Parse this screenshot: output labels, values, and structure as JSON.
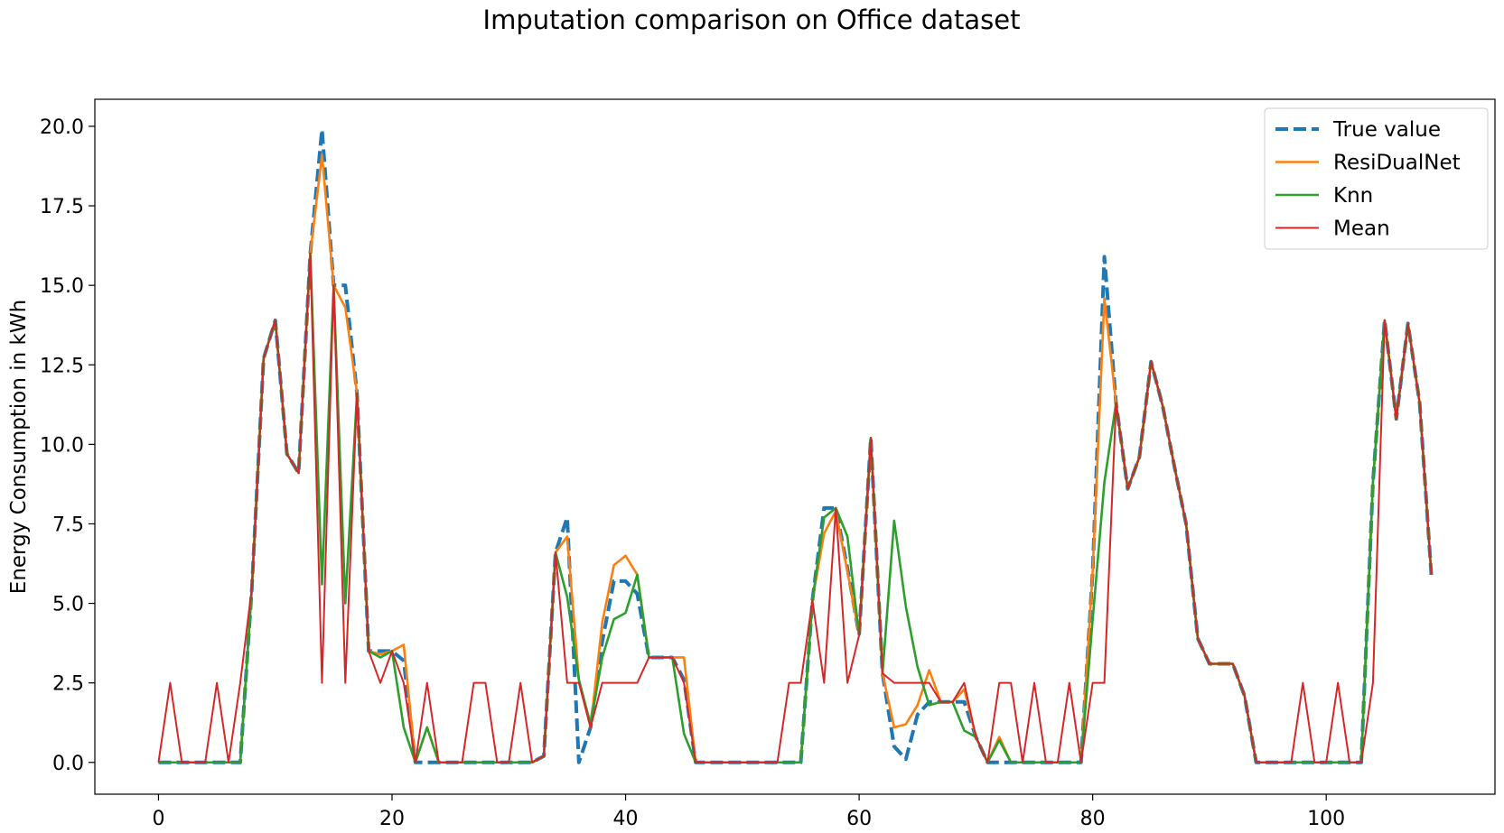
{
  "chart_data": {
    "type": "line",
    "title": "Imputation comparison on Office dataset",
    "xlabel": "",
    "ylabel": "Energy Consumption in kWh",
    "xlim": [
      -5.45,
      114.45
    ],
    "ylim": [
      -1.0,
      20.85
    ],
    "xticks": [
      0,
      20,
      40,
      60,
      80,
      100
    ],
    "xtick_labels": [
      "0",
      "20",
      "40",
      "60",
      "80",
      "100"
    ],
    "yticks": [
      0.0,
      2.5,
      5.0,
      7.5,
      10.0,
      12.5,
      15.0,
      17.5,
      20.0
    ],
    "ytick_labels": [
      "0.0",
      "2.5",
      "5.0",
      "7.5",
      "10.0",
      "12.5",
      "15.0",
      "17.5",
      "20.0"
    ],
    "grid": false,
    "legend_position": "top-right",
    "series": [
      {
        "name": "True value",
        "color": "#1f77b4",
        "style": "dashed",
        "values": [
          0,
          0,
          0,
          0,
          0,
          0,
          0,
          0,
          5.5,
          12.7,
          13.9,
          9.7,
          9.1,
          16.0,
          19.9,
          15.0,
          15.0,
          11.6,
          3.5,
          3.5,
          3.5,
          3.2,
          0,
          0,
          0,
          0,
          0,
          0,
          0,
          0,
          0,
          0,
          0,
          0.2,
          6.6,
          7.7,
          0,
          1.1,
          3.8,
          5.7,
          5.7,
          5.3,
          3.3,
          3.3,
          3.3,
          2.6,
          0,
          0,
          0,
          0,
          0,
          0,
          0,
          0,
          0,
          0,
          5.1,
          8.0,
          8.0,
          6.1,
          4.0,
          10.2,
          2.8,
          0.5,
          0.1,
          1.5,
          1.9,
          1.9,
          1.9,
          1.9,
          0.8,
          0,
          0,
          0,
          0,
          0,
          0,
          0,
          0,
          0,
          6.0,
          15.9,
          11.3,
          8.6,
          9.6,
          12.6,
          11.2,
          9.3,
          7.5,
          3.9,
          3.1,
          3.1,
          3.1,
          2.1,
          0,
          0,
          0,
          0,
          0,
          0,
          0,
          0,
          0,
          0,
          8.8,
          13.9,
          10.8,
          13.8,
          11.3,
          5.9
        ]
      },
      {
        "name": "ResiDualNet",
        "color": "#ff7f0e",
        "style": "solid",
        "values": [
          0,
          0,
          0,
          0,
          0,
          0,
          0,
          0,
          5.5,
          12.7,
          13.9,
          9.7,
          9.1,
          16.0,
          19.1,
          15.0,
          14.3,
          11.6,
          3.5,
          3.4,
          3.5,
          3.7,
          0,
          1.1,
          0,
          0,
          0,
          0,
          0,
          0,
          0,
          0,
          0,
          0.2,
          6.6,
          7.1,
          2.6,
          1.1,
          4.4,
          6.2,
          6.5,
          5.9,
          3.3,
          3.3,
          3.3,
          3.3,
          0,
          0,
          0,
          0,
          0,
          0,
          0,
          0,
          0,
          0,
          5.1,
          7.2,
          7.9,
          6.0,
          4.0,
          10.2,
          2.8,
          1.1,
          1.2,
          1.8,
          2.9,
          1.9,
          1.9,
          2.3,
          0.8,
          0,
          0.8,
          0,
          0,
          0,
          0,
          0,
          0,
          0,
          6.0,
          14.6,
          11.3,
          8.6,
          9.6,
          12.6,
          11.2,
          9.3,
          7.5,
          3.9,
          3.1,
          3.1,
          3.1,
          2.1,
          0,
          0,
          0,
          0,
          0,
          0,
          0,
          0,
          0,
          0,
          8.8,
          13.9,
          10.8,
          13.8,
          11.3,
          5.9
        ]
      },
      {
        "name": "Knn",
        "color": "#2ca02c",
        "style": "solid",
        "values": [
          0,
          0,
          0,
          0,
          0,
          0,
          0,
          0,
          5.5,
          12.7,
          13.9,
          9.7,
          9.1,
          16.0,
          5.6,
          15.0,
          5.0,
          11.6,
          3.5,
          3.3,
          3.5,
          1.1,
          0,
          1.1,
          0,
          0,
          0,
          0,
          0,
          0,
          0,
          0,
          0,
          0.2,
          6.6,
          5.2,
          2.6,
          1.2,
          3.3,
          4.5,
          4.7,
          5.9,
          3.3,
          3.3,
          3.3,
          0.9,
          0,
          0,
          0,
          0,
          0,
          0,
          0,
          0,
          0,
          0,
          5.1,
          7.7,
          8.0,
          7.1,
          4.0,
          10.2,
          2.8,
          7.6,
          4.9,
          3.0,
          1.8,
          1.9,
          1.9,
          1.0,
          0.8,
          0,
          0.7,
          0,
          0,
          0,
          0,
          0,
          0,
          0,
          4.5,
          8.8,
          11.3,
          8.6,
          9.6,
          12.6,
          11.2,
          9.3,
          7.5,
          3.9,
          3.1,
          3.1,
          3.1,
          2.1,
          0,
          0,
          0,
          0,
          0,
          0,
          0,
          0,
          0,
          0,
          8.8,
          13.9,
          10.8,
          13.8,
          11.3,
          5.9
        ]
      },
      {
        "name": "Mean",
        "color": "#d62728",
        "style": "solid",
        "values": [
          0,
          2.5,
          0,
          0,
          0,
          2.5,
          0,
          2.5,
          5.5,
          12.7,
          13.9,
          9.7,
          9.1,
          16.0,
          2.5,
          15.0,
          2.5,
          11.6,
          3.5,
          2.5,
          3.5,
          2.5,
          0,
          2.5,
          0,
          0,
          0,
          2.5,
          2.5,
          0,
          0,
          2.5,
          0,
          0.2,
          6.6,
          2.5,
          2.5,
          1.1,
          2.5,
          2.5,
          2.5,
          2.5,
          3.3,
          3.3,
          3.3,
          2.5,
          0,
          0,
          0,
          0,
          0,
          0,
          0,
          0,
          2.5,
          2.5,
          5.1,
          2.5,
          8.0,
          2.5,
          4.0,
          10.2,
          2.8,
          2.5,
          2.5,
          2.5,
          2.5,
          1.9,
          1.9,
          2.5,
          0.8,
          0,
          2.5,
          2.5,
          0,
          2.5,
          0,
          0,
          2.5,
          0,
          2.5,
          2.5,
          11.3,
          8.6,
          9.6,
          12.6,
          11.2,
          9.3,
          7.5,
          3.9,
          3.1,
          3.1,
          3.1,
          2.1,
          0,
          0,
          0,
          0,
          2.5,
          0,
          0,
          2.5,
          0,
          0,
          2.5,
          13.9,
          10.8,
          13.8,
          11.3,
          5.9
        ]
      }
    ]
  }
}
